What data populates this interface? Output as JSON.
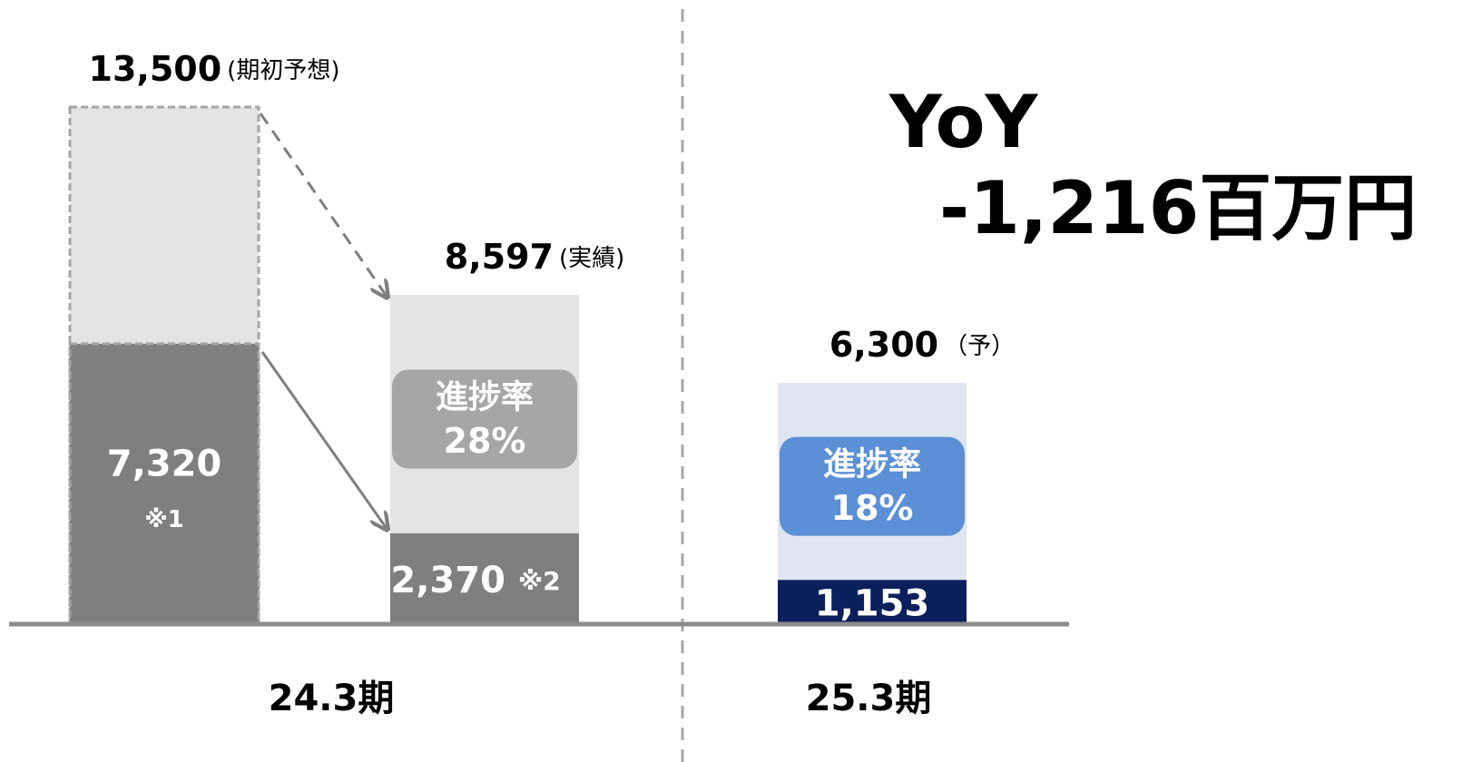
{
  "chart_data": {
    "type": "bar",
    "groups": [
      {
        "label": "24.3期",
        "bars": [
          {
            "total": 13500,
            "total_label": "13,500",
            "total_note": "(期初予想)",
            "total_color": "#e4e4e4",
            "dashed": true,
            "part": 7320,
            "part_label": "7,320",
            "part_note": "※1",
            "part_color": "#7f7f7f"
          },
          {
            "total": 8597,
            "total_label": "8,597",
            "total_note": "(実績)",
            "total_color": "#e4e4e4",
            "part": 2370,
            "part_label": "2,370",
            "part_note": "※2",
            "part_color": "#7f7f7f",
            "rate_title": "進捗率",
            "rate": 28,
            "rate_text": "28%",
            "rate_color": "#a6a6a6"
          }
        ]
      },
      {
        "label": "25.3期",
        "bars": [
          {
            "total": 6300,
            "total_label": "6,300",
            "total_note": "（予）",
            "total_color": "#dfe6f2",
            "part": 1153,
            "part_label": "1,153",
            "part_color": "#0a1f5c",
            "rate_title": "進捗率",
            "rate": 18,
            "rate_text": "18%",
            "rate_color": "#5b8fd6"
          }
        ]
      }
    ],
    "annotation": {
      "title": "YoY",
      "text": "-1,216百万円"
    }
  }
}
